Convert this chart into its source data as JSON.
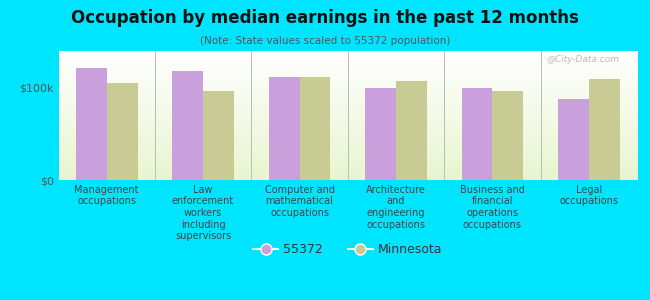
{
  "title": "Occupation by median earnings in the past 12 months",
  "subtitle": "(Note: State values scaled to 55372 population)",
  "categories": [
    "Management\noccupations",
    "Law\nenforcement\nworkers\nincluding\nsupervisors",
    "Computer and\nmathematical\noccupations",
    "Architecture\nand\nengineering\noccupations",
    "Business and\nfinancial\noperations\noccupations",
    "Legal\noccupations"
  ],
  "values_55372": [
    122000,
    118000,
    112000,
    100000,
    100000,
    88000
  ],
  "values_minnesota": [
    105000,
    97000,
    112000,
    107000,
    97000,
    110000
  ],
  "color_55372": "#c9a0dc",
  "color_minnesota": "#c8cc94",
  "background_color": "#00e5ff",
  "ylim": [
    0,
    140000
  ],
  "yticks": [
    0,
    100000
  ],
  "ytick_labels": [
    "$0",
    "$100k"
  ],
  "legend_label_55372": "55372",
  "legend_label_minnesota": "Minnesota",
  "watermark": "@City-Data.com",
  "bar_width": 0.32
}
